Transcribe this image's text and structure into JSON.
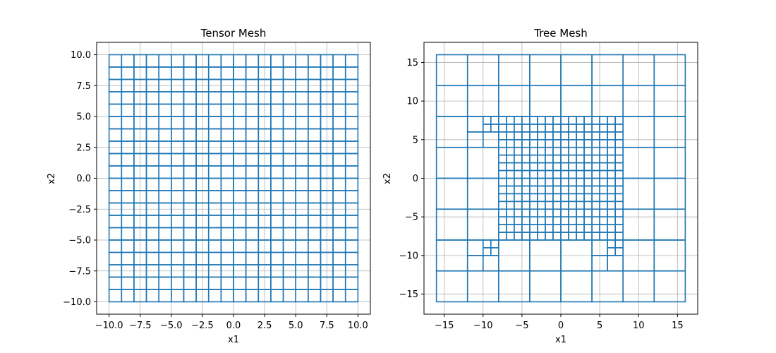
{
  "chart_data": [
    {
      "type": "mesh",
      "mesh": "tensor",
      "title": "Tensor Mesh",
      "xlabel": "x1",
      "ylabel": "x2",
      "xlim": [
        -11,
        11
      ],
      "ylim": [
        -11,
        11
      ],
      "xticks": [
        -10,
        -7.5,
        -5,
        -2.5,
        0,
        2.5,
        5,
        7.5,
        10
      ],
      "xtick_labels": [
        "−10.0",
        "−7.5",
        "−5.0",
        "−2.5",
        "0.0",
        "2.5",
        "5.0",
        "7.5",
        "10.0"
      ],
      "yticks": [
        -10,
        -7.5,
        -5,
        -2.5,
        0,
        2.5,
        5,
        7.5,
        10
      ],
      "ytick_labels": [
        "−10.0",
        "−7.5",
        "−5.0",
        "−2.5",
        "0.0",
        "2.5",
        "5.0",
        "7.5",
        "10.0"
      ],
      "grid": true,
      "line_color": "#1f77b4",
      "x_nodes": [
        -10,
        -9,
        -8,
        -7,
        -6,
        -5,
        -4,
        -3,
        -2,
        -1,
        0,
        1,
        2,
        3,
        4,
        5,
        6,
        7,
        8,
        9,
        10
      ],
      "y_nodes": [
        -10,
        -9,
        -8,
        -7,
        -6,
        -5,
        -4,
        -3,
        -2,
        -1,
        0,
        1,
        2,
        3,
        4,
        5,
        6,
        7,
        8,
        9,
        10
      ]
    },
    {
      "type": "mesh",
      "mesh": "tree",
      "title": "Tree Mesh",
      "xlabel": "x1",
      "ylabel": "x2",
      "xlim": [
        -17.6,
        17.6
      ],
      "ylim": [
        -17.6,
        17.6
      ],
      "xticks": [
        -15,
        -10,
        -5,
        0,
        5,
        10,
        15
      ],
      "xtick_labels": [
        "−15",
        "−10",
        "−5",
        "0",
        "5",
        "10",
        "15"
      ],
      "yticks": [
        -15,
        -10,
        -5,
        0,
        5,
        10,
        15
      ],
      "ytick_labels": [
        "−15",
        "−10",
        "−5",
        "0",
        "5",
        "10",
        "15"
      ],
      "grid": true,
      "line_color": "#1f77b4",
      "domain": [
        -16,
        16
      ],
      "finest_cell": 1,
      "refine_box": [
        -8,
        8
      ],
      "refine_points": [
        [
          -9,
          -9
        ],
        [
          -9,
          7
        ],
        [
          7,
          -9
        ],
        [
          7,
          7
        ]
      ]
    }
  ]
}
